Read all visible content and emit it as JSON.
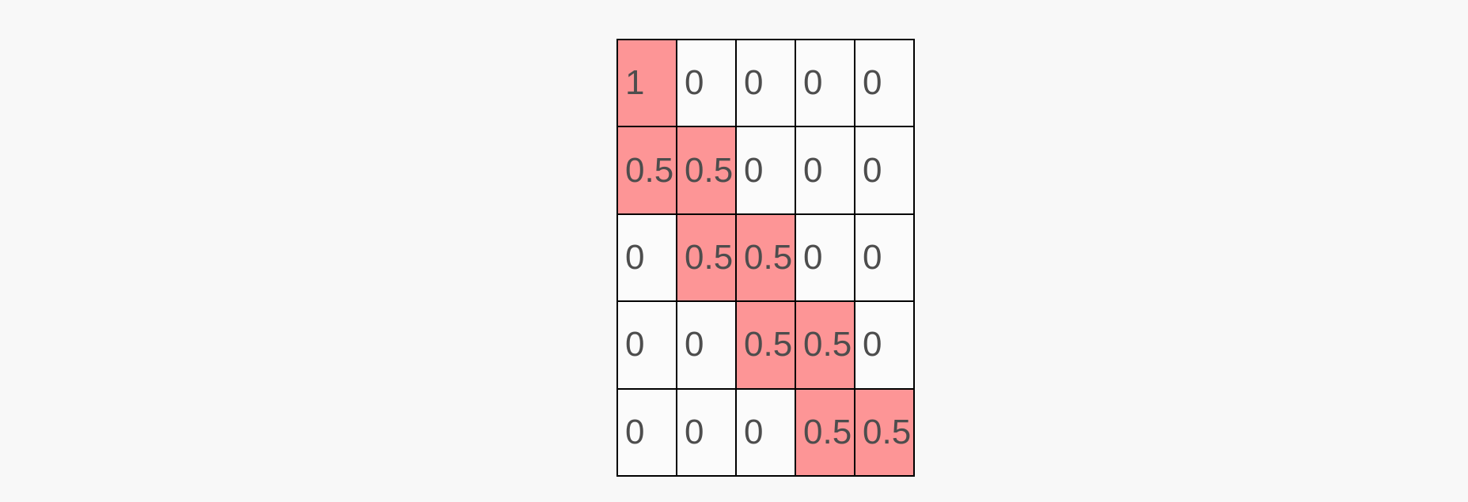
{
  "page": {
    "background": "#f8f8f8"
  },
  "matrix": {
    "columns": 5,
    "colors": {
      "highlight": "#fd9596",
      "cell_background": "#fbfbfb",
      "grid_line": "#000000",
      "text": "#4d4d4d"
    },
    "rows": [
      {
        "cells": [
          {
            "value": "1",
            "highlighted": true
          },
          {
            "value": "0",
            "highlighted": false
          },
          {
            "value": "0",
            "highlighted": false
          },
          {
            "value": "0",
            "highlighted": false
          },
          {
            "value": "0",
            "highlighted": false
          }
        ]
      },
      {
        "cells": [
          {
            "value": "0.5",
            "highlighted": true
          },
          {
            "value": "0.5",
            "highlighted": true
          },
          {
            "value": "0",
            "highlighted": false
          },
          {
            "value": "0",
            "highlighted": false
          },
          {
            "value": "0",
            "highlighted": false
          }
        ]
      },
      {
        "cells": [
          {
            "value": "0",
            "highlighted": false
          },
          {
            "value": "0.5",
            "highlighted": true
          },
          {
            "value": "0.5",
            "highlighted": true
          },
          {
            "value": "0",
            "highlighted": false
          },
          {
            "value": "0",
            "highlighted": false
          }
        ]
      },
      {
        "cells": [
          {
            "value": "0",
            "highlighted": false
          },
          {
            "value": "0",
            "highlighted": false
          },
          {
            "value": "0.5",
            "highlighted": true
          },
          {
            "value": "0.5",
            "highlighted": true
          },
          {
            "value": "0",
            "highlighted": false
          }
        ]
      },
      {
        "cells": [
          {
            "value": "0",
            "highlighted": false
          },
          {
            "value": "0",
            "highlighted": false
          },
          {
            "value": "0",
            "highlighted": false
          },
          {
            "value": "0.5",
            "highlighted": true
          },
          {
            "value": "0.5",
            "highlighted": true
          }
        ]
      }
    ]
  },
  "chart_data": {
    "type": "heatmap",
    "title": "",
    "xlabel": "",
    "ylabel": "",
    "rows": 5,
    "cols": 5,
    "values": [
      [
        1,
        0,
        0,
        0,
        0
      ],
      [
        0.5,
        0.5,
        0,
        0,
        0
      ],
      [
        0,
        0.5,
        0.5,
        0,
        0
      ],
      [
        0,
        0,
        0.5,
        0.5,
        0
      ],
      [
        0,
        0,
        0,
        0.5,
        0.5
      ]
    ],
    "highlight_mask": [
      [
        1,
        0,
        0,
        0,
        0
      ],
      [
        1,
        1,
        0,
        0,
        0
      ],
      [
        0,
        1,
        1,
        0,
        0
      ],
      [
        0,
        0,
        1,
        1,
        0
      ],
      [
        0,
        0,
        0,
        1,
        1
      ]
    ],
    "highlight_color": "#fd9596",
    "legend_position": "none",
    "grid": true
  }
}
